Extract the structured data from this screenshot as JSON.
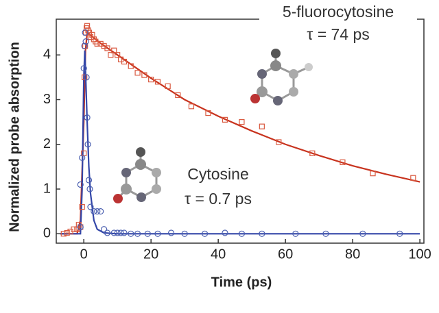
{
  "chart_data": {
    "type": "scatter",
    "xlabel": "Time (ps)",
    "ylabel": "Normalized probe absorption",
    "xlim": [
      -8.2,
      101.2
    ],
    "ylim": [
      -0.21,
      4.8
    ],
    "xticks": [
      0,
      20,
      40,
      60,
      80,
      100
    ],
    "yticks": [
      0,
      1,
      2,
      3,
      4
    ],
    "annotations": [
      "τ = 74 ps",
      "τ = 0.7 ps"
    ],
    "series": [
      {
        "name": "5-fluorocytosine",
        "color": "#d9593f",
        "marker": "square",
        "x": [
          -6,
          -5,
          -4,
          -3,
          -2,
          -1.5,
          -1,
          -0.5,
          0,
          0.2,
          0.4,
          0.6,
          0.8,
          1,
          1.3,
          1.6,
          2,
          2.5,
          3,
          3.5,
          4,
          5,
          6,
          7,
          8,
          9,
          10,
          11,
          12,
          14,
          16,
          18,
          20,
          22,
          25,
          28,
          32,
          37,
          42,
          47,
          53,
          58,
          68,
          77,
          86,
          98
        ],
        "values": [
          0,
          0.02,
          0.05,
          0.1,
          0.1,
          0.2,
          0.15,
          0.6,
          1.8,
          3.5,
          4.2,
          4.5,
          4.6,
          4.65,
          4.55,
          4.5,
          4.4,
          4.45,
          4.35,
          4.3,
          4.25,
          4.25,
          4.2,
          4.15,
          4.0,
          4.1,
          4.0,
          3.9,
          3.85,
          3.75,
          3.6,
          3.55,
          3.45,
          3.4,
          3.3,
          3.1,
          2.85,
          2.7,
          2.55,
          2.5,
          2.4,
          2.05,
          1.8,
          1.6,
          1.35,
          1.25
        ]
      },
      {
        "name": "Cytosine",
        "color": "#4a5fb0",
        "marker": "circle",
        "x": [
          -1,
          -1,
          -0.5,
          0,
          0.2,
          0.4,
          0.6,
          0.8,
          1,
          1.2,
          1.5,
          1.8,
          2,
          3,
          4,
          5,
          6,
          7,
          9,
          10,
          11,
          12,
          14,
          16,
          19,
          22,
          26,
          30,
          36,
          42,
          47,
          53,
          63,
          72,
          83,
          94
        ],
        "values": [
          0.15,
          1.1,
          1.7,
          3.7,
          4.2,
          4.5,
          4.3,
          3.5,
          2.6,
          2.0,
          1.2,
          1.0,
          0.6,
          0.5,
          0.5,
          0.5,
          0.1,
          0.02,
          0.02,
          0.02,
          0.02,
          0.02,
          0,
          0,
          0,
          0,
          0.02,
          0,
          0,
          0.02,
          0,
          0,
          0,
          0,
          0,
          0
        ]
      },
      {
        "color": "#c8331e",
        "marker": "line",
        "x": [
          -7,
          -2,
          -1,
          0,
          0.5,
          1,
          5,
          10,
          20,
          30,
          40,
          50,
          60,
          70,
          80,
          90,
          100
        ],
        "values": [
          0,
          0,
          0.3,
          2.5,
          4.1,
          4.5,
          4.26,
          4.0,
          3.48,
          3.0,
          2.63,
          2.3,
          2.0,
          1.75,
          1.52,
          1.33,
          1.16
        ]
      },
      {
        "color": "#3346a8",
        "marker": "line",
        "x": [
          -7,
          -1,
          -0.5,
          0,
          0.3,
          0.7,
          1,
          1.5,
          2,
          3,
          4,
          6,
          10,
          100
        ],
        "values": [
          0,
          0,
          1.0,
          3.5,
          4.1,
          3.2,
          2.5,
          1.5,
          0.9,
          0.3,
          0.1,
          0.02,
          0,
          0
        ]
      }
    ]
  }
}
